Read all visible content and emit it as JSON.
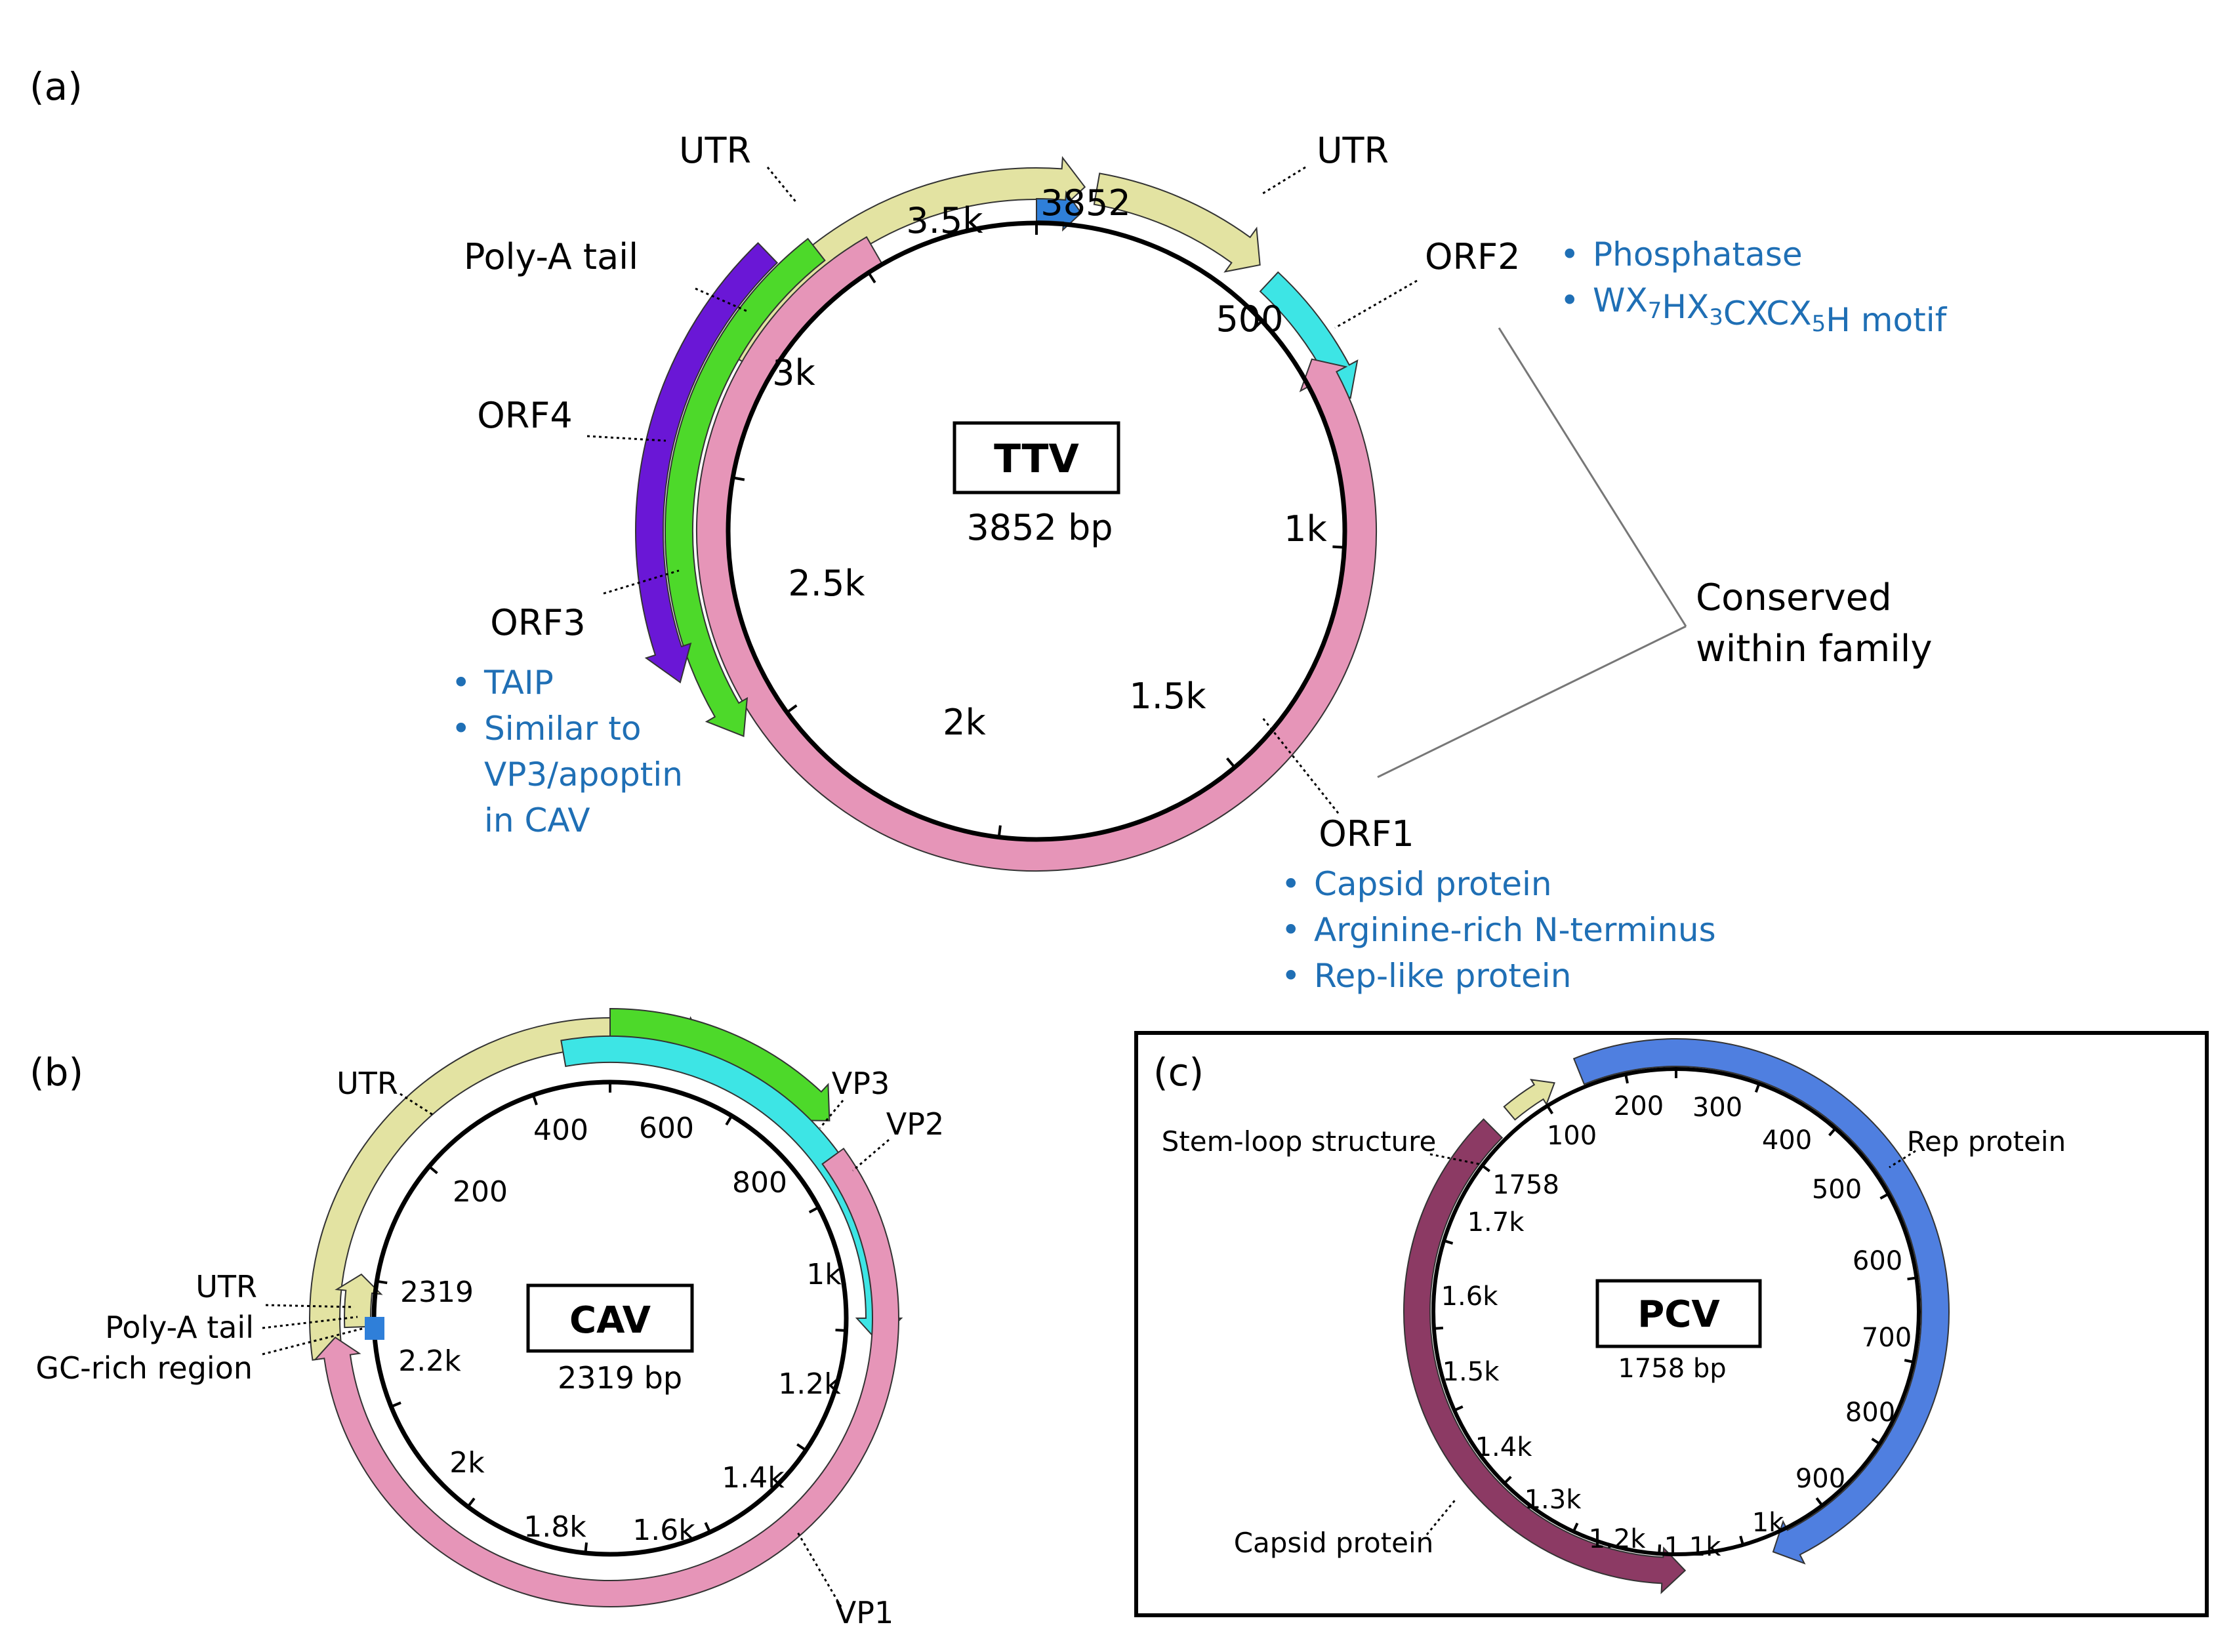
{
  "colors": {
    "utr": "#e3e3a2",
    "orf1": "#e695b8",
    "orf2": "#3de5e5",
    "orf3": "#4dd92a",
    "orf4": "#6a17d6",
    "gc_region": "#2f7fd9",
    "rep_protein": "#4f7fe0",
    "capsid_pcv": "#8c3a64",
    "annotation_blue": "#1f6fb5"
  },
  "panel_a": {
    "panel_label": "(a)",
    "name": "TTV",
    "size": "3852 bp",
    "ticks": [
      "3852",
      "500",
      "1k",
      "1.5k",
      "2k",
      "2.5k",
      "3k",
      "3.5k"
    ],
    "features": {
      "utr_left": "UTR",
      "utr_right": "UTR",
      "polya": "Poly-A tail",
      "orf1": "ORF1",
      "orf2": "ORF2",
      "orf3": "ORF3",
      "orf4": "ORF4"
    },
    "orf2_notes": [
      "Phosphatase",
      "WX7HX3CXCX5H motif"
    ],
    "orf3_notes": [
      "TAIP",
      "Similar to",
      "VP3/apoptin",
      "in CAV"
    ],
    "orf1_notes": [
      "Capsid protein",
      "Arginine-rich N-terminus",
      "Rep-like protein"
    ],
    "conserved_line1": "Conserved",
    "conserved_line2": "within family"
  },
  "panel_b": {
    "panel_label": "(b)",
    "name": "CAV",
    "size": "2319 bp",
    "ticks": [
      "2319",
      "200",
      "400",
      "600",
      "800",
      "1k",
      "1.2k",
      "1.4k",
      "1.6k",
      "1.8k",
      "2k",
      "2.2k"
    ],
    "features": {
      "utr_top": "UTR",
      "vp3": "VP3",
      "vp2": "VP2",
      "vp1": "VP1",
      "utr_left": "UTR",
      "polya": "Poly-A tail",
      "gc": "GC-rich region"
    }
  },
  "panel_c": {
    "panel_label": "(c)",
    "name": "PCV",
    "size": "1758 bp",
    "ticks": [
      "1758",
      "100",
      "200",
      "300",
      "400",
      "500",
      "600",
      "700",
      "800",
      "900",
      "1k",
      "1.1k",
      "1.2k",
      "1.3k",
      "1.4k",
      "1.5k",
      "1.6k",
      "1.7k"
    ],
    "features": {
      "stem_loop": "Stem-loop structure",
      "rep": "Rep protein",
      "capsid": "Capsid protein"
    }
  }
}
